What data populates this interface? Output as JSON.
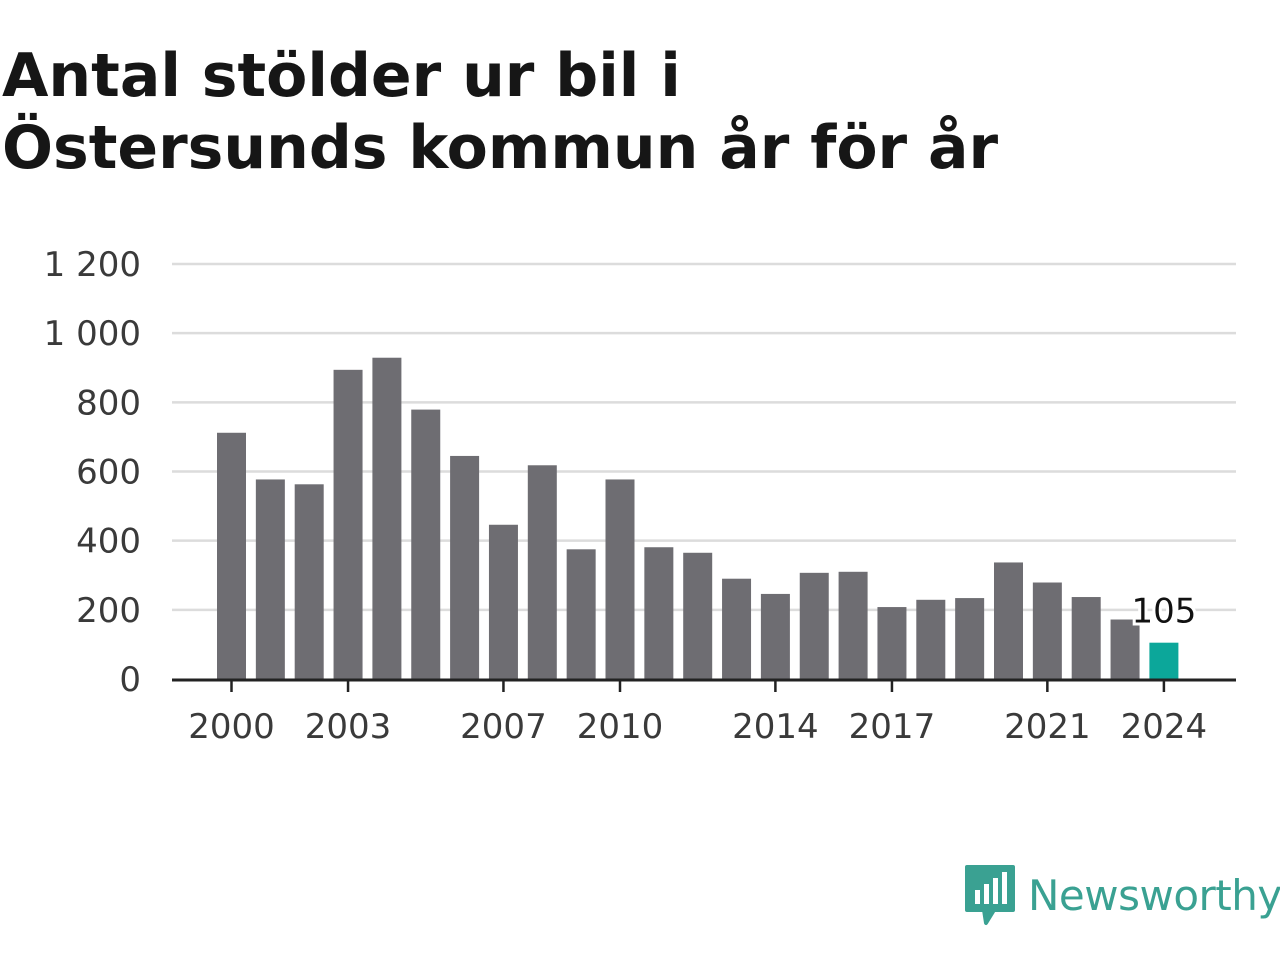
{
  "title": "Antal stölder ur bil i Östersunds kommun år för år",
  "brand": {
    "name": "Newsworthy",
    "icon": "newsworthy-logo-icon",
    "color": "#3aa192"
  },
  "colors": {
    "bar": "#6e6d72",
    "highlight": "#0ca79a",
    "grid": "#dcdcdc",
    "axis": "#222222"
  },
  "chart_data": {
    "type": "bar",
    "title": "Antal stölder ur bil i Östersunds kommun år för år",
    "xlabel": "",
    "ylabel": "",
    "ylim": [
      0,
      1200
    ],
    "yticks": [
      0,
      200,
      400,
      600,
      800,
      1000,
      1200
    ],
    "ytick_labels": [
      "0",
      "200",
      "400",
      "600",
      "800",
      "1 000",
      "1 200"
    ],
    "xtick_labels": [
      "2000",
      "2003",
      "2007",
      "2010",
      "2014",
      "2017",
      "2021",
      "2024"
    ],
    "grid": true,
    "categories": [
      "2000",
      "2001",
      "2002",
      "2003",
      "2004",
      "2005",
      "2006",
      "2007",
      "2008",
      "2009",
      "2010",
      "2011",
      "2012",
      "2013",
      "2014",
      "2015",
      "2016",
      "2017",
      "2018",
      "2019",
      "2020",
      "2021",
      "2022",
      "2023",
      "2024"
    ],
    "values": [
      712,
      577,
      563,
      894,
      929,
      779,
      645,
      446,
      618,
      375,
      577,
      381,
      365,
      290,
      246,
      307,
      310,
      208,
      229,
      234,
      337,
      279,
      237,
      172,
      105
    ],
    "highlight": {
      "category": "2024",
      "value": 105,
      "label": "105"
    }
  }
}
